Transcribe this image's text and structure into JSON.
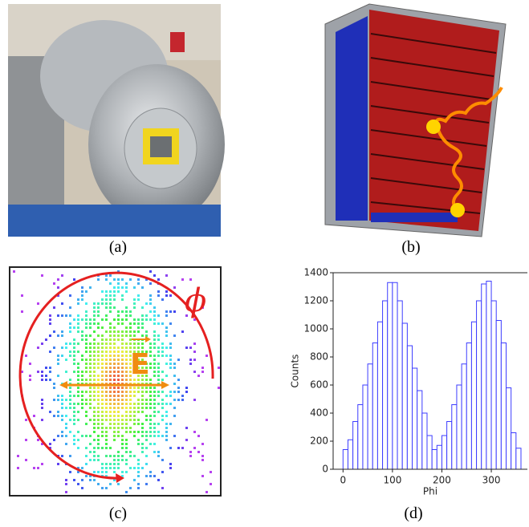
{
  "panels": {
    "a": {
      "caption": "(a)"
    },
    "b": {
      "caption": "(b)"
    },
    "c": {
      "caption": "(c)",
      "angle_label": "ϕ",
      "field_label": "E"
    },
    "d": {
      "caption": "(d)"
    }
  },
  "chart_data": {
    "type": "histogram",
    "x_label": "Phi",
    "y_label": "Counts",
    "color": "#3d3dff",
    "bins": [
      0,
      10,
      20,
      30,
      40,
      50,
      60,
      70,
      80,
      90,
      100,
      110,
      120,
      130,
      140,
      150,
      160,
      170,
      180,
      190,
      200,
      210,
      220,
      230,
      240,
      250,
      260,
      270,
      280,
      290,
      300,
      310,
      320,
      330,
      340,
      350,
      360
    ],
    "counts": [
      140,
      210,
      340,
      460,
      600,
      750,
      900,
      1050,
      1200,
      1330,
      1330,
      1200,
      1040,
      880,
      720,
      560,
      400,
      240,
      140,
      170,
      240,
      340,
      460,
      600,
      750,
      900,
      1050,
      1200,
      1320,
      1340,
      1200,
      1060,
      900,
      580,
      260,
      150
    ],
    "xlim": [
      -20,
      373
    ],
    "ylim": [
      0,
      1400
    ],
    "xticks": [
      0,
      100,
      200,
      300
    ],
    "yticks": [
      0,
      200,
      400,
      600,
      800,
      1000,
      1200,
      1400
    ]
  }
}
